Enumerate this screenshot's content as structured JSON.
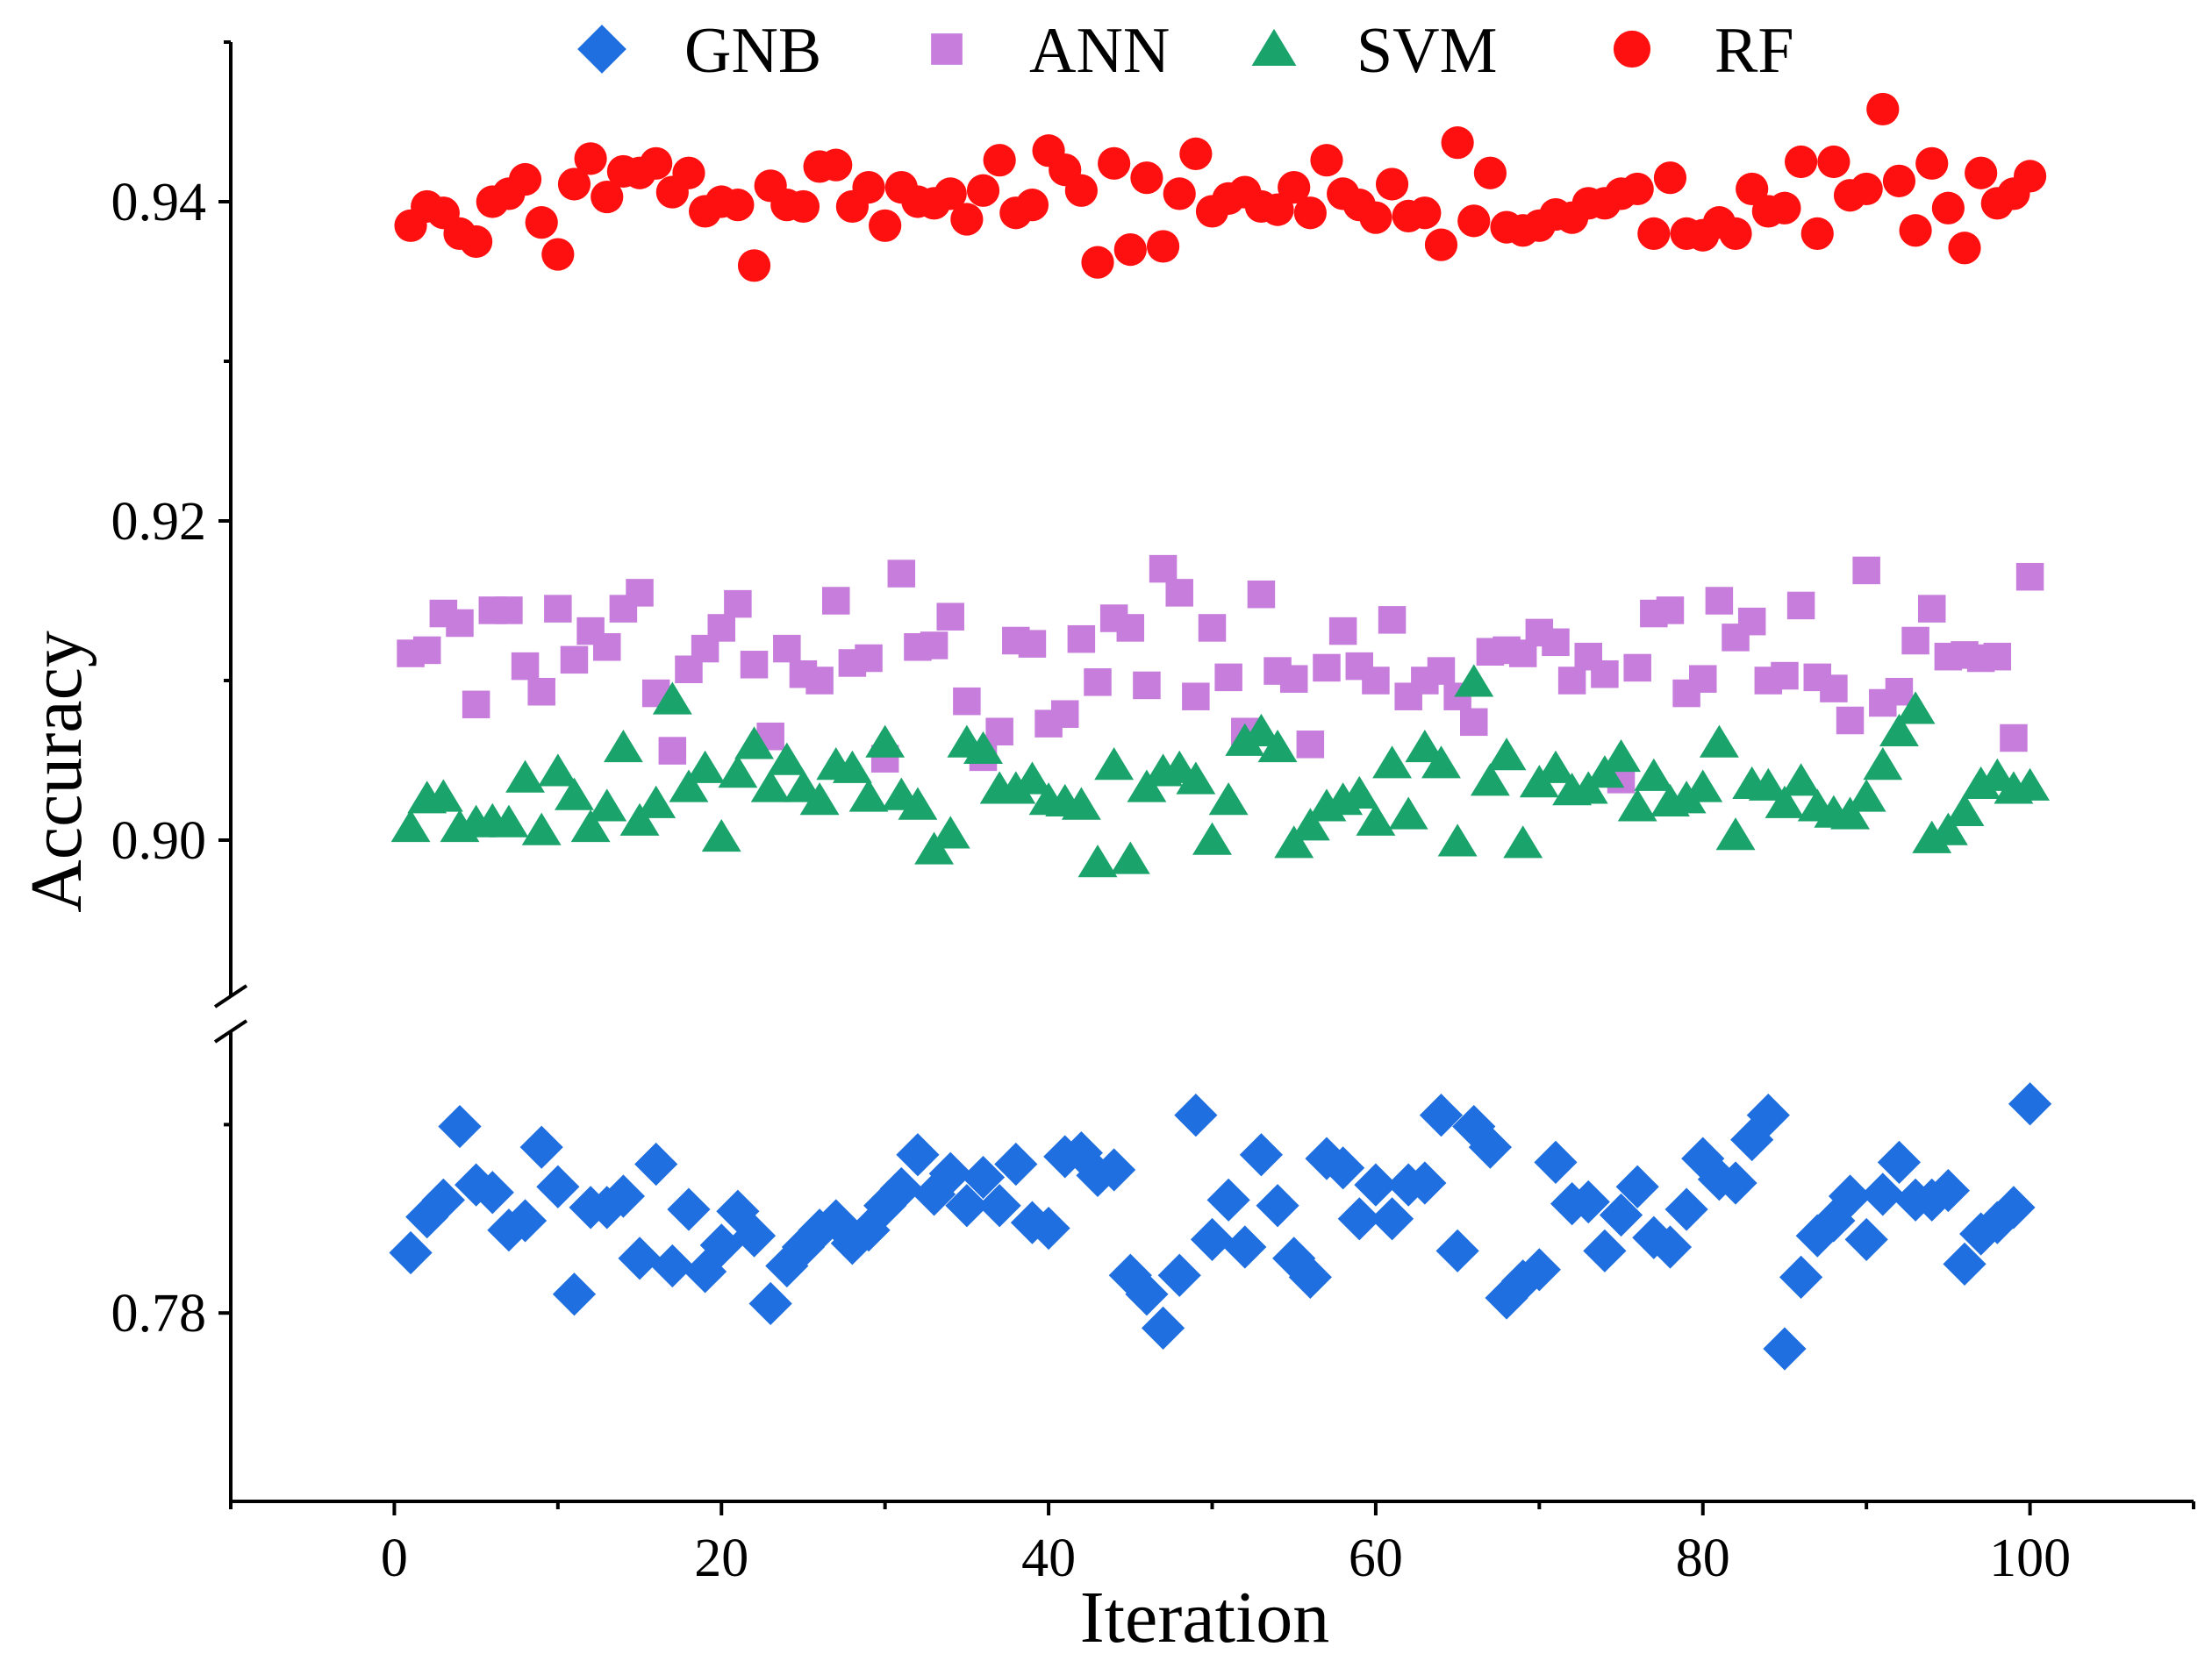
{
  "chart_data": {
    "type": "scatter",
    "xlabel": "Iteration",
    "ylabel": "Accuracy",
    "xlim": [
      -10,
      110
    ],
    "ylim": [
      0.77,
      0.95
    ],
    "axis_break": [
      0.795,
      0.89
    ],
    "x_ticks": [
      {
        "value": 0,
        "label": "0"
      },
      {
        "value": 20,
        "label": "20"
      },
      {
        "value": 40,
        "label": "40"
      },
      {
        "value": 60,
        "label": "60"
      },
      {
        "value": 80,
        "label": "80"
      },
      {
        "value": 100,
        "label": "100"
      }
    ],
    "y_ticks": [
      {
        "value": 0.78,
        "label": "0.78"
      },
      {
        "value": 0.9,
        "label": "0.90"
      },
      {
        "value": 0.92,
        "label": "0.92"
      },
      {
        "value": 0.94,
        "label": "0.94"
      }
    ],
    "legend_position": "top",
    "grid": false,
    "series": [
      {
        "name": "GNB",
        "marker": "diamond",
        "color": "#1f6fe0",
        "x": [
          1,
          2,
          3,
          4,
          5,
          6,
          7,
          8,
          9,
          10,
          11,
          12,
          13,
          14,
          15,
          16,
          17,
          18,
          19,
          20,
          21,
          22,
          23,
          24,
          25,
          26,
          27,
          28,
          29,
          30,
          31,
          32,
          33,
          34,
          35,
          36,
          37,
          38,
          39,
          40,
          41,
          42,
          43,
          44,
          45,
          46,
          47,
          48,
          49,
          50,
          51,
          52,
          53,
          54,
          55,
          56,
          57,
          58,
          59,
          60,
          61,
          62,
          63,
          64,
          65,
          66,
          67,
          68,
          69,
          70,
          71,
          72,
          73,
          74,
          75,
          76,
          77,
          78,
          79,
          80,
          81,
          82,
          83,
          84,
          85,
          86,
          87,
          88,
          89,
          90,
          91,
          92,
          93,
          94,
          95,
          96,
          97,
          98,
          99,
          100
        ],
        "y": [
          0.7832,
          0.7851,
          0.786,
          0.7899,
          0.7868,
          0.7864,
          0.7844,
          0.7849,
          0.7888,
          0.7867,
          0.781,
          0.7856,
          0.7856,
          0.7862,
          0.7829,
          0.7879,
          0.7825,
          0.7855,
          0.7822,
          0.7836,
          0.7854,
          0.7841,
          0.7805,
          0.7825,
          0.7835,
          0.7844,
          0.7849,
          0.7837,
          0.7844,
          0.7857,
          0.7866,
          0.7884,
          0.7863,
          0.7874,
          0.7857,
          0.7872,
          0.7857,
          0.7879,
          0.7848,
          0.7845,
          0.7883,
          0.7885,
          0.7873,
          0.7876,
          0.782,
          0.781,
          0.7792,
          0.782,
          0.7905,
          0.7839,
          0.786,
          0.7835,
          0.7884,
          0.7857,
          0.7829,
          0.7819,
          0.7882,
          0.7877,
          0.785,
          0.7868,
          0.785,
          0.7868,
          0.7869,
          0.7905,
          0.7833,
          0.7899,
          0.7888,
          0.7808,
          0.7817,
          0.7823,
          0.788,
          0.7858,
          0.7859,
          0.7833,
          0.7852,
          0.7867,
          0.784,
          0.7835,
          0.7855,
          0.7882,
          0.7871,
          0.7869,
          0.7892,
          0.7905,
          0.7781,
          0.7819,
          0.7841,
          0.7849,
          0.7862,
          0.7839,
          0.7863,
          0.788,
          0.786,
          0.786,
          0.7865,
          0.7826,
          0.7842,
          0.7848,
          0.7856,
          0.7911
        ]
      },
      {
        "name": "ANN",
        "marker": "square",
        "color": "#c77ddb",
        "x": [
          1,
          2,
          3,
          4,
          5,
          6,
          7,
          8,
          9,
          10,
          11,
          12,
          13,
          14,
          15,
          16,
          17,
          18,
          19,
          20,
          21,
          22,
          23,
          24,
          25,
          26,
          27,
          28,
          29,
          30,
          31,
          32,
          33,
          34,
          35,
          36,
          37,
          38,
          39,
          40,
          41,
          42,
          43,
          44,
          45,
          46,
          47,
          48,
          49,
          50,
          51,
          52,
          53,
          54,
          55,
          56,
          57,
          58,
          59,
          60,
          61,
          62,
          63,
          64,
          65,
          66,
          67,
          68,
          69,
          70,
          71,
          72,
          73,
          74,
          75,
          76,
          77,
          78,
          79,
          80,
          81,
          82,
          83,
          84,
          85,
          86,
          87,
          88,
          89,
          90,
          91,
          92,
          93,
          94,
          95,
          96,
          97,
          98,
          99,
          100
        ],
        "y": [
          0.9117,
          0.9119,
          0.9142,
          0.9136,
          0.9085,
          0.9144,
          0.9144,
          0.9109,
          0.9093,
          0.9145,
          0.9113,
          0.9131,
          0.9121,
          0.9145,
          0.9155,
          0.9092,
          0.9056,
          0.9107,
          0.912,
          0.9133,
          0.9148,
          0.911,
          0.9065,
          0.912,
          0.9104,
          0.91,
          0.915,
          0.9111,
          0.9114,
          0.9051,
          0.9167,
          0.9121,
          0.9122,
          0.914,
          0.9087,
          0.9052,
          0.9068,
          0.9125,
          0.9123,
          0.9073,
          0.9079,
          0.9126,
          0.9099,
          0.9139,
          0.9133,
          0.9097,
          0.917,
          0.9155,
          0.909,
          0.9133,
          0.9102,
          0.9068,
          0.9154,
          0.9106,
          0.9101,
          0.906,
          0.9108,
          0.9131,
          0.9109,
          0.91,
          0.9138,
          0.909,
          0.91,
          0.9106,
          0.909,
          0.9074,
          0.9118,
          0.9119,
          0.9117,
          0.913,
          0.9124,
          0.91,
          0.9115,
          0.9104,
          0.9038,
          0.9108,
          0.9142,
          0.9144,
          0.9092,
          0.9101,
          0.915,
          0.9127,
          0.9137,
          0.91,
          0.9103,
          0.9147,
          0.9102,
          0.9095,
          0.9075,
          0.9169,
          0.9086,
          0.9093,
          0.9125,
          0.9145,
          0.9115,
          0.9116,
          0.9114,
          0.9115,
          0.9064,
          0.9165
        ]
      },
      {
        "name": "SVM",
        "marker": "triangle",
        "color": "#1aa36a",
        "x": [
          1,
          2,
          3,
          4,
          5,
          6,
          7,
          8,
          9,
          10,
          11,
          12,
          13,
          14,
          15,
          16,
          17,
          18,
          19,
          20,
          21,
          22,
          23,
          24,
          25,
          26,
          27,
          28,
          29,
          30,
          31,
          32,
          33,
          34,
          35,
          36,
          37,
          38,
          39,
          40,
          41,
          42,
          43,
          44,
          45,
          46,
          47,
          48,
          49,
          50,
          51,
          52,
          53,
          54,
          55,
          56,
          57,
          58,
          59,
          60,
          61,
          62,
          63,
          64,
          65,
          66,
          67,
          68,
          69,
          70,
          71,
          72,
          73,
          74,
          75,
          76,
          77,
          78,
          79,
          80,
          81,
          82,
          83,
          84,
          85,
          86,
          87,
          88,
          89,
          90,
          91,
          92,
          93,
          94,
          95,
          96,
          97,
          98,
          99,
          100
        ],
        "y": [
          0.9008,
          0.9026,
          0.9027,
          0.9008,
          0.9011,
          0.9012,
          0.9011,
          0.9039,
          0.9006,
          0.9043,
          0.9028,
          0.9008,
          0.9021,
          0.9058,
          0.9012,
          0.9023,
          0.9088,
          0.9033,
          0.9045,
          0.9002,
          0.9042,
          0.906,
          0.9033,
          0.905,
          0.9033,
          0.9025,
          0.9047,
          0.9045,
          0.9027,
          0.9061,
          0.9028,
          0.9022,
          0.8994,
          0.9004,
          0.9061,
          0.9057,
          0.9032,
          0.9032,
          0.9038,
          0.9025,
          0.9024,
          0.9022,
          0.8986,
          0.9047,
          0.8988,
          0.9033,
          0.9043,
          0.9045,
          0.9038,
          0.9,
          0.9025,
          0.9062,
          0.9068,
          0.9058,
          0.8998,
          0.9009,
          0.9021,
          0.9025,
          0.9029,
          0.9012,
          0.9048,
          0.9016,
          0.9058,
          0.9048,
          0.8999,
          0.9099,
          0.9037,
          0.9053,
          0.8998,
          0.9036,
          0.9045,
          0.9031,
          0.9032,
          0.9042,
          0.9052,
          0.9021,
          0.904,
          0.9024,
          0.9026,
          0.9033,
          0.9061,
          0.9003,
          0.9035,
          0.9034,
          0.9023,
          0.9037,
          0.9021,
          0.9017,
          0.9016,
          0.9027,
          0.9047,
          0.9068,
          0.9082,
          0.9001,
          0.9006,
          0.9018,
          0.9035,
          0.904,
          0.9032,
          0.9034
        ]
      },
      {
        "name": "RF",
        "marker": "circle",
        "color": "#ff1010",
        "x": [
          1,
          2,
          3,
          4,
          5,
          6,
          7,
          8,
          9,
          10,
          11,
          12,
          13,
          14,
          15,
          16,
          17,
          18,
          19,
          20,
          21,
          22,
          23,
          24,
          25,
          26,
          27,
          28,
          29,
          30,
          31,
          32,
          33,
          34,
          35,
          36,
          37,
          38,
          39,
          40,
          41,
          42,
          43,
          44,
          45,
          46,
          47,
          48,
          49,
          50,
          51,
          52,
          53,
          54,
          55,
          56,
          57,
          58,
          59,
          60,
          61,
          62,
          63,
          64,
          65,
          66,
          67,
          68,
          69,
          70,
          71,
          72,
          73,
          74,
          75,
          76,
          77,
          78,
          79,
          80,
          81,
          82,
          83,
          84,
          85,
          86,
          87,
          88,
          89,
          90,
          91,
          92,
          93,
          94,
          95,
          96,
          97,
          98,
          99,
          100
        ],
        "y": [
          0.9385,
          0.9397,
          0.9393,
          0.938,
          0.9375,
          0.94,
          0.9405,
          0.9414,
          0.9387,
          0.9367,
          0.9411,
          0.9427,
          0.9403,
          0.9419,
          0.9418,
          0.9424,
          0.9406,
          0.9418,
          0.9394,
          0.94,
          0.9398,
          0.936,
          0.941,
          0.9398,
          0.9397,
          0.9422,
          0.9423,
          0.9397,
          0.9409,
          0.9385,
          0.9409,
          0.94,
          0.9399,
          0.9405,
          0.9389,
          0.9407,
          0.9426,
          0.9393,
          0.9398,
          0.9432,
          0.942,
          0.9407,
          0.9362,
          0.9424,
          0.937,
          0.9415,
          0.9372,
          0.9405,
          0.943,
          0.9394,
          0.9402,
          0.9406,
          0.9397,
          0.9395,
          0.9409,
          0.9393,
          0.9426,
          0.9405,
          0.9398,
          0.939,
          0.9411,
          0.9391,
          0.9393,
          0.9373,
          0.9437,
          0.9388,
          0.9418,
          0.9384,
          0.9382,
          0.9385,
          0.9392,
          0.939,
          0.9399,
          0.9399,
          0.9405,
          0.9408,
          0.938,
          0.9415,
          0.938,
          0.9379,
          0.9387,
          0.938,
          0.9408,
          0.9394,
          0.9396,
          0.9425,
          0.938,
          0.9425,
          0.9404,
          0.9408,
          0.9458,
          0.9413,
          0.9382,
          0.9424,
          0.9396,
          0.9371,
          0.9418,
          0.9399,
          0.9405,
          0.9416
        ]
      }
    ]
  }
}
